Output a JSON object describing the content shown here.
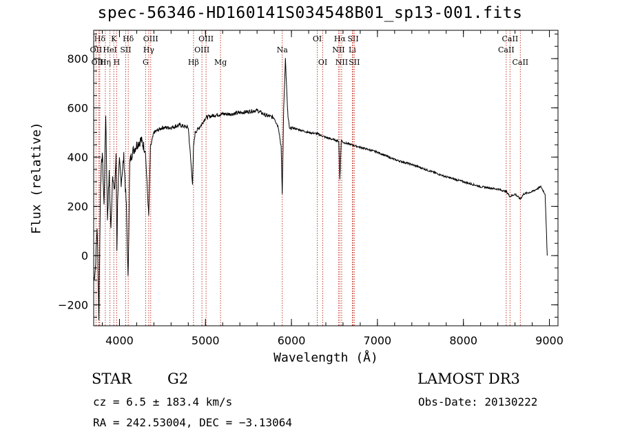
{
  "chart_data": {
    "type": "line",
    "title": "spec-56346-HD160141S034548B01_sp13-001.fits",
    "xlabel": "Wavelength (Å)",
    "ylabel": "Flux (relative)",
    "xlim": [
      3700,
      9100
    ],
    "ylim": [
      -285,
      915
    ],
    "xticks": [
      4000,
      5000,
      6000,
      7000,
      8000,
      9000
    ],
    "yticks": [
      -200,
      0,
      200,
      400,
      600,
      800
    ],
    "xtick_labels": [
      "4000",
      "5000",
      "6000",
      "7000",
      "8000",
      "9000"
    ],
    "ytick_labels": [
      "−200",
      "0",
      "200",
      "400",
      "600",
      "800"
    ],
    "series": [
      {
        "name": "flux",
        "x": [
          3700,
          3720,
          3740,
          3760,
          3780,
          3800,
          3820,
          3840,
          3860,
          3880,
          3900,
          3920,
          3940,
          3960,
          3970,
          3980,
          4000,
          4020,
          4050,
          4080,
          4100,
          4120,
          4150,
          4200,
          4250,
          4300,
          4340,
          4360,
          4400,
          4500,
          4600,
          4700,
          4800,
          4850,
          4861,
          4880,
          4950,
          5000,
          5100,
          5200,
          5300,
          5400,
          5500,
          5600,
          5700,
          5800,
          5850,
          5880,
          5893,
          5910,
          5930,
          5950,
          5960,
          5980,
          6000,
          6100,
          6200,
          6300,
          6400,
          6500,
          6550,
          6563,
          6580,
          6600,
          6700,
          6800,
          7000,
          7200,
          7400,
          7600,
          7800,
          8000,
          8200,
          8400,
          8500,
          8542,
          8600,
          8662,
          8700,
          8800,
          8850,
          8900,
          8950,
          8960,
          8975
        ],
        "y": [
          -100,
          -50,
          120,
          -250,
          300,
          420,
          200,
          580,
          150,
          330,
          100,
          340,
          250,
          400,
          30,
          250,
          380,
          300,
          400,
          200,
          -100,
          380,
          420,
          450,
          470,
          430,
          160,
          440,
          500,
          520,
          520,
          530,
          520,
          290,
          440,
          500,
          530,
          560,
          570,
          575,
          575,
          580,
          585,
          590,
          570,
          560,
          520,
          440,
          250,
          600,
          800,
          630,
          560,
          510,
          520,
          510,
          500,
          495,
          480,
          470,
          465,
          310,
          470,
          460,
          450,
          440,
          420,
          390,
          370,
          345,
          320,
          300,
          280,
          270,
          260,
          240,
          250,
          230,
          250,
          260,
          270,
          280,
          250,
          150,
          0
        ]
      }
    ],
    "spectral_lines": [
      {
        "name": "Hδ",
        "wavelength": 3771,
        "row": 1
      },
      {
        "name": "OII",
        "wavelength": 3727,
        "row": 2
      },
      {
        "name": "OIII",
        "wavelength": 3760,
        "row": 3
      },
      {
        "name": "K",
        "wavelength": 3934,
        "row": 1
      },
      {
        "name": "HeI",
        "wavelength": 3889,
        "row": 2
      },
      {
        "name": "Hη",
        "wavelength": 3835,
        "row": 3
      },
      {
        "name": "Hδ",
        "wavelength": 4102,
        "row": 1
      },
      {
        "name": "SII",
        "wavelength": 4072,
        "row": 2
      },
      {
        "name": "H",
        "wavelength": 3968,
        "row": 3
      },
      {
        "name": "OIII",
        "wavelength": 4363,
        "row": 1
      },
      {
        "name": "Hγ",
        "wavelength": 4340,
        "row": 2
      },
      {
        "name": "G",
        "wavelength": 4304,
        "row": 3
      },
      {
        "name": "Hβ",
        "wavelength": 4861,
        "row": 3
      },
      {
        "name": "OIII",
        "wavelength": 5007,
        "row": 1
      },
      {
        "name": "OIII",
        "wavelength": 4959,
        "row": 2
      },
      {
        "name": "Mg",
        "wavelength": 5175,
        "row": 3
      },
      {
        "name": "Na",
        "wavelength": 5893,
        "row": 2
      },
      {
        "name": "OI",
        "wavelength": 6300,
        "row": 1
      },
      {
        "name": "OI",
        "wavelength": 6364,
        "row": 3
      },
      {
        "name": "Hα",
        "wavelength": 6563,
        "row": 1
      },
      {
        "name": "NII",
        "wavelength": 6548,
        "row": 2
      },
      {
        "name": "NII",
        "wavelength": 6584,
        "row": 3
      },
      {
        "name": "SII",
        "wavelength": 6717,
        "row": 1
      },
      {
        "name": "Li",
        "wavelength": 6708,
        "row": 2
      },
      {
        "name": "SII",
        "wavelength": 6731,
        "row": 3
      },
      {
        "name": "CaII",
        "wavelength": 8542,
        "row": 1
      },
      {
        "name": "CaII",
        "wavelength": 8498,
        "row": 2
      },
      {
        "name": "CaII",
        "wavelength": 8662,
        "row": 3
      }
    ]
  },
  "info": {
    "class": "STAR",
    "subclass": "G2",
    "redshift": "cz = 6.5 ± 183.4 km/s",
    "coords": "RA = 242.53004, DEC =  −3.13064",
    "survey": "LAMOST DR3",
    "obs_date": "Obs-Date: 20130222"
  }
}
